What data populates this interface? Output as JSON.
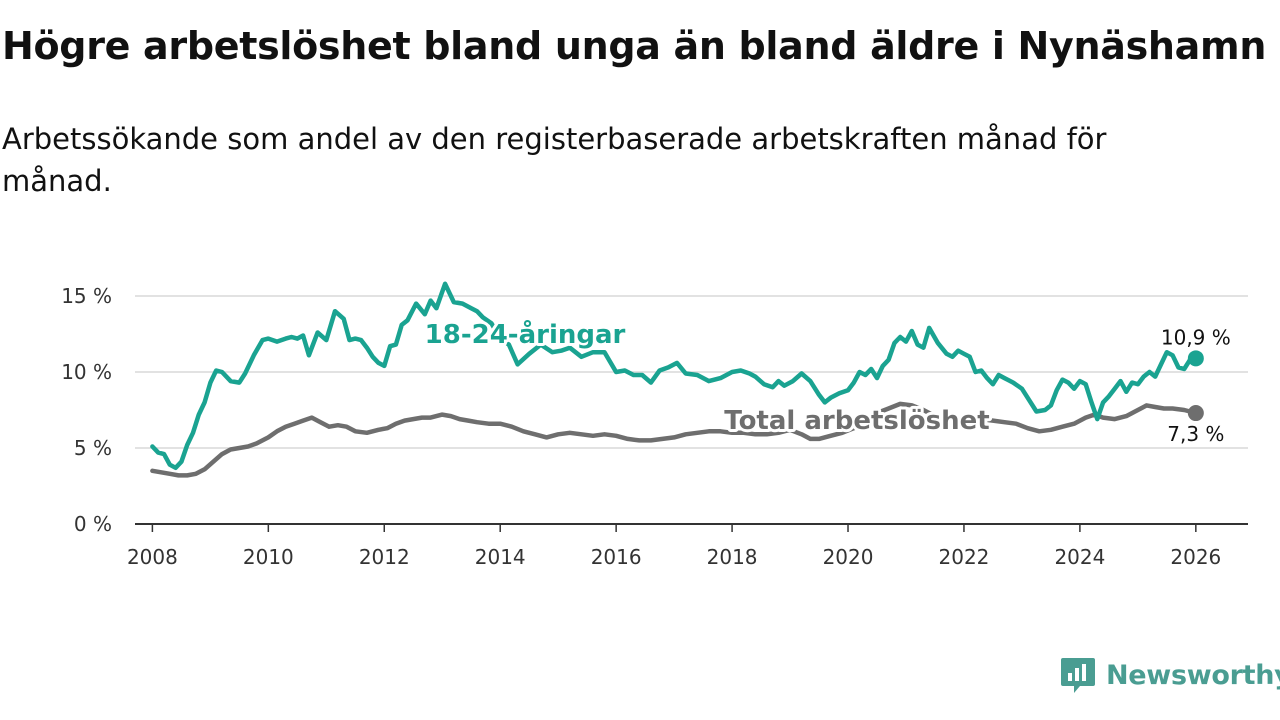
{
  "title": "Högre arbetslöshet bland unga än bland äldre i Nynäshamn",
  "subtitle": "Arbetssökande som andel av den registerbaserade arbetskraften månad för månad.",
  "brand": {
    "name": "Newsworthy",
    "icon": "newsworthy-logo-icon",
    "color": "#4a9d92"
  },
  "chart_data": {
    "type": "line",
    "title": "Högre arbetslöshet bland unga än bland äldre i Nynäshamn",
    "xlabel": "",
    "ylabel": "",
    "xlim": [
      2007.7,
      2026.9
    ],
    "ylim": [
      0,
      15
    ],
    "grid": true,
    "x_ticks": [
      2008,
      2010,
      2012,
      2014,
      2016,
      2018,
      2020,
      2022,
      2024,
      2026
    ],
    "x_tick_labels": [
      "2008",
      "2010",
      "2012",
      "2014",
      "2016",
      "2018",
      "2020",
      "2022",
      "2024",
      "2026"
    ],
    "y_ticks": [
      0,
      5,
      10,
      15
    ],
    "y_tick_labels": [
      "0 %",
      "5 %",
      "10 %",
      "15 %"
    ],
    "series": [
      {
        "name": "18-24-åringar",
        "color": "#1aa391",
        "end_label": "10,9 %",
        "x": [
          2008.0,
          2008.1,
          2008.2,
          2008.3,
          2008.4,
          2008.5,
          2008.6,
          2008.7,
          2008.8,
          2008.9,
          2009.0,
          2009.1,
          2009.2,
          2009.35,
          2009.5,
          2009.6,
          2009.75,
          2009.9,
          2010.0,
          2010.15,
          2010.3,
          2010.4,
          2010.5,
          2010.6,
          2010.7,
          2010.85,
          2011.0,
          2011.15,
          2011.3,
          2011.4,
          2011.5,
          2011.6,
          2011.7,
          2011.8,
          2011.9,
          2012.0,
          2012.1,
          2012.2,
          2012.3,
          2012.4,
          2012.55,
          2012.7,
          2012.8,
          2012.9,
          2013.05,
          2013.2,
          2013.35,
          2013.5,
          2013.6,
          2013.7,
          2013.85,
          2014.0,
          2014.15,
          2014.3,
          2014.5,
          2014.7,
          2014.9,
          2015.05,
          2015.2,
          2015.4,
          2015.6,
          2015.8,
          2016.0,
          2016.15,
          2016.3,
          2016.45,
          2016.6,
          2016.75,
          2016.9,
          2017.05,
          2017.2,
          2017.4,
          2017.6,
          2017.8,
          2018.0,
          2018.15,
          2018.3,
          2018.4,
          2018.55,
          2018.7,
          2018.8,
          2018.9,
          2019.05,
          2019.2,
          2019.35,
          2019.5,
          2019.6,
          2019.7,
          2019.85,
          2020.0,
          2020.1,
          2020.2,
          2020.3,
          2020.4,
          2020.5,
          2020.6,
          2020.7,
          2020.8,
          2020.9,
          2021.0,
          2021.1,
          2021.2,
          2021.3,
          2021.4,
          2021.55,
          2021.7,
          2021.8,
          2021.9,
          2022.0,
          2022.1,
          2022.2,
          2022.3,
          2022.4,
          2022.5,
          2022.6,
          2022.7,
          2022.85,
          2023.0,
          2023.1,
          2023.25,
          2023.4,
          2023.5,
          2023.6,
          2023.7,
          2023.8,
          2023.9,
          2024.0,
          2024.1,
          2024.2,
          2024.3,
          2024.4,
          2024.5,
          2024.6,
          2024.7,
          2024.8,
          2024.9,
          2025.0,
          2025.1,
          2025.2,
          2025.3,
          2025.4,
          2025.5,
          2025.6,
          2025.7,
          2025.8,
          2025.9,
          2026.0
        ],
        "y": [
          5.1,
          4.7,
          4.6,
          3.9,
          3.7,
          4.1,
          5.2,
          6.0,
          7.2,
          8.0,
          9.3,
          10.1,
          10.0,
          9.4,
          9.3,
          9.9,
          11.1,
          12.1,
          12.2,
          12.0,
          12.2,
          12.3,
          12.2,
          12.4,
          11.1,
          12.6,
          12.1,
          14.0,
          13.5,
          12.1,
          12.2,
          12.1,
          11.6,
          11.0,
          10.6,
          10.4,
          11.7,
          11.8,
          13.1,
          13.4,
          14.5,
          13.8,
          14.7,
          14.2,
          15.8,
          14.6,
          14.5,
          14.2,
          14.0,
          13.6,
          13.2,
          12.2,
          11.8,
          10.5,
          11.2,
          11.8,
          11.3,
          11.4,
          11.6,
          11.0,
          11.3,
          11.3,
          10.0,
          10.1,
          9.8,
          9.8,
          9.3,
          10.1,
          10.3,
          10.6,
          9.9,
          9.8,
          9.4,
          9.6,
          10.0,
          10.1,
          9.9,
          9.7,
          9.2,
          9.0,
          9.4,
          9.1,
          9.4,
          9.9,
          9.4,
          8.5,
          8.0,
          8.3,
          8.6,
          8.8,
          9.3,
          10.0,
          9.8,
          10.2,
          9.6,
          10.4,
          10.8,
          11.9,
          12.3,
          12.0,
          12.7,
          11.8,
          11.6,
          12.9,
          11.9,
          11.2,
          11.0,
          11.4,
          11.2,
          11.0,
          10.0,
          10.1,
          9.6,
          9.2,
          9.8,
          9.6,
          9.3,
          8.9,
          8.3,
          7.4,
          7.5,
          7.8,
          8.8,
          9.5,
          9.3,
          8.9,
          9.4,
          9.2,
          8.0,
          6.9,
          8.0,
          8.4,
          8.9,
          9.4,
          8.7,
          9.3,
          9.2,
          9.7,
          10.0,
          9.7,
          10.5,
          11.3,
          11.1,
          10.3,
          10.2,
          10.8,
          10.9
        ]
      },
      {
        "name": "Total arbetslöshet",
        "color": "#6e6e6e",
        "end_label": "7,3 %",
        "x": [
          2008.0,
          2008.15,
          2008.3,
          2008.45,
          2008.6,
          2008.75,
          2008.9,
          2009.05,
          2009.2,
          2009.35,
          2009.5,
          2009.65,
          2009.8,
          2010.0,
          2010.15,
          2010.3,
          2010.45,
          2010.6,
          2010.75,
          2010.9,
          2011.05,
          2011.2,
          2011.35,
          2011.5,
          2011.7,
          2011.9,
          2012.05,
          2012.2,
          2012.35,
          2012.5,
          2012.65,
          2012.8,
          2013.0,
          2013.15,
          2013.3,
          2013.45,
          2013.6,
          2013.8,
          2014.0,
          2014.2,
          2014.4,
          2014.6,
          2014.8,
          2015.0,
          2015.2,
          2015.4,
          2015.6,
          2015.8,
          2016.0,
          2016.2,
          2016.4,
          2016.6,
          2016.8,
          2017.0,
          2017.2,
          2017.4,
          2017.6,
          2017.8,
          2018.0,
          2018.2,
          2018.4,
          2018.6,
          2018.8,
          2019.0,
          2019.2,
          2019.35,
          2019.5,
          2019.7,
          2019.9,
          2020.1,
          2020.3,
          2020.5,
          2020.7,
          2020.9,
          2021.1,
          2021.3,
          2021.5,
          2021.7,
          2021.9,
          2022.1,
          2022.3,
          2022.5,
          2022.7,
          2022.9,
          2023.1,
          2023.3,
          2023.5,
          2023.7,
          2023.9,
          2024.1,
          2024.25,
          2024.4,
          2024.6,
          2024.8,
          2025.0,
          2025.15,
          2025.3,
          2025.45,
          2025.6,
          2025.8,
          2026.0
        ],
        "y": [
          3.5,
          3.4,
          3.3,
          3.2,
          3.2,
          3.3,
          3.6,
          4.1,
          4.6,
          4.9,
          5.0,
          5.1,
          5.3,
          5.7,
          6.1,
          6.4,
          6.6,
          6.8,
          7.0,
          6.7,
          6.4,
          6.5,
          6.4,
          6.1,
          6.0,
          6.2,
          6.3,
          6.6,
          6.8,
          6.9,
          7.0,
          7.0,
          7.2,
          7.1,
          6.9,
          6.8,
          6.7,
          6.6,
          6.6,
          6.4,
          6.1,
          5.9,
          5.7,
          5.9,
          6.0,
          5.9,
          5.8,
          5.9,
          5.8,
          5.6,
          5.5,
          5.5,
          5.6,
          5.7,
          5.9,
          6.0,
          6.1,
          6.1,
          6.0,
          6.0,
          5.9,
          5.9,
          6.0,
          6.2,
          5.9,
          5.6,
          5.6,
          5.8,
          6.0,
          6.3,
          6.8,
          7.3,
          7.6,
          7.9,
          7.8,
          7.5,
          7.1,
          6.8,
          6.7,
          6.8,
          6.9,
          6.8,
          6.7,
          6.6,
          6.3,
          6.1,
          6.2,
          6.4,
          6.6,
          7.0,
          7.2,
          7.0,
          6.9,
          7.1,
          7.5,
          7.8,
          7.7,
          7.6,
          7.6,
          7.5,
          7.3
        ]
      }
    ]
  }
}
